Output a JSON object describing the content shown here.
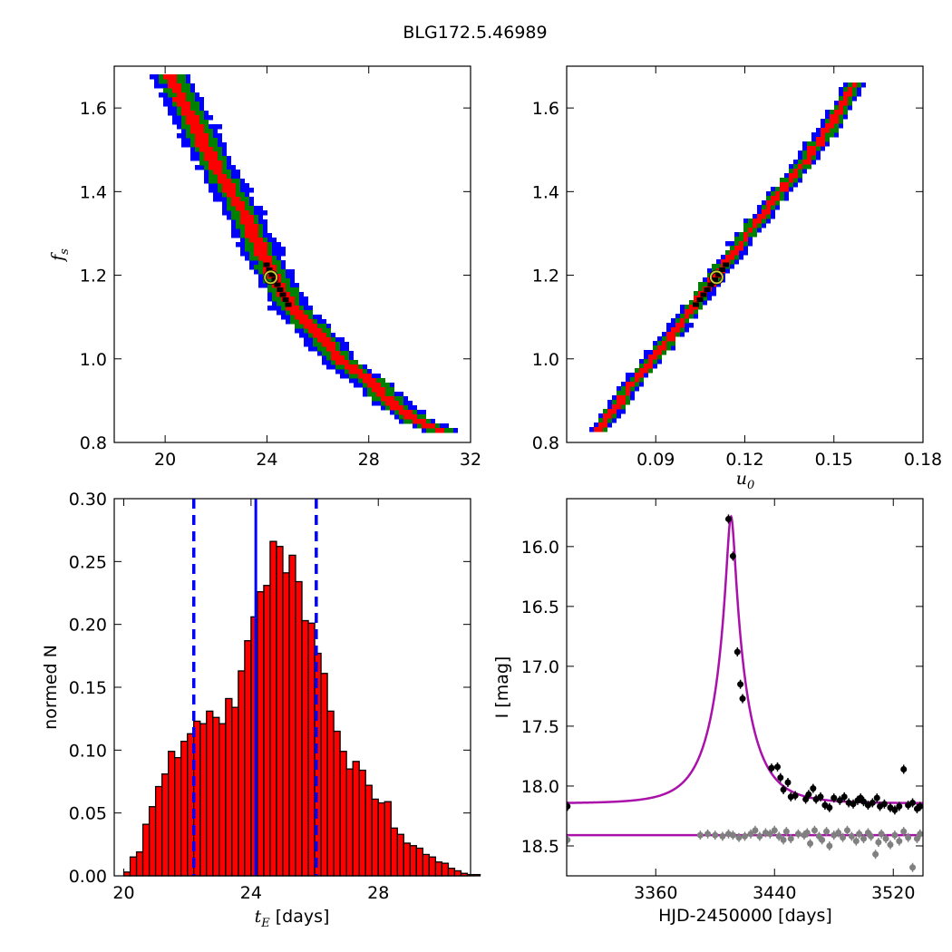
{
  "figure": {
    "title": "BLG172.5.46989"
  },
  "colors": {
    "blue_contour": "#0000ff",
    "green_contour": "#008000",
    "red_contour": "#ff0000",
    "best_marker": "#000000",
    "best_ring": "#c8c832",
    "hist_bar": "#ff0000",
    "hist_edge": "#000000",
    "vline": "#0000ff",
    "model": "#aa10aa",
    "obs_points": "#000000",
    "resid_points": "#808080"
  },
  "chart_data": [
    {
      "id": "tE_vs_fs",
      "type": "heatmap",
      "xlabel": "",
      "ylabel": "f_s",
      "xlim": [
        18,
        32
      ],
      "ylim": [
        0.8,
        1.7
      ],
      "x_ticks": [
        20,
        24,
        28,
        32
      ],
      "y_ticks": [
        0.8,
        1.0,
        1.2,
        1.4,
        1.6
      ],
      "x_tick_labels": [
        "20",
        "24",
        "28",
        "32"
      ],
      "y_tick_labels": [
        "0.8",
        "1.0",
        "1.2",
        "1.4",
        "1.6"
      ],
      "ridge": {
        "x": [
          20.2,
          21.0,
          22.0,
          23.0,
          24.0,
          25.0,
          26.0,
          27.0,
          28.0,
          29.0,
          30.0,
          30.8
        ],
        "y": [
          1.68,
          1.58,
          1.46,
          1.36,
          1.23,
          1.12,
          1.06,
          0.99,
          0.95,
          0.89,
          0.85,
          0.83
        ]
      },
      "confidence_levels": [
        "blue",
        "green",
        "red"
      ],
      "best_fit": {
        "x": 24.15,
        "y": 1.195
      }
    },
    {
      "id": "u0_vs_fs",
      "type": "heatmap",
      "xlabel": "u_0",
      "ylabel": "",
      "xlim": [
        0.06,
        0.18
      ],
      "ylim": [
        0.8,
        1.7
      ],
      "x_ticks": [
        0.09,
        0.12,
        0.15,
        0.18
      ],
      "y_ticks": [
        0.8,
        1.0,
        1.2,
        1.4,
        1.6
      ],
      "x_tick_labels": [
        "0.09",
        "0.12",
        "0.15",
        "0.18"
      ],
      "y_tick_labels": [
        "0.8",
        "1.0",
        "1.2",
        "1.4",
        "1.6"
      ],
      "ridge": {
        "x": [
          0.071,
          0.08,
          0.09,
          0.1,
          0.11,
          0.12,
          0.13,
          0.14,
          0.15,
          0.157
        ],
        "y": [
          0.83,
          0.92,
          1.01,
          1.1,
          1.195,
          1.29,
          1.38,
          1.47,
          1.57,
          1.66
        ]
      },
      "confidence_levels": [
        "blue",
        "green",
        "red"
      ],
      "best_fit": {
        "x": 0.1105,
        "y": 1.195
      }
    },
    {
      "id": "tE_histogram",
      "type": "bar",
      "xlabel": "t_E [days]",
      "ylabel": "normed N",
      "xlim": [
        19.7,
        30.9
      ],
      "ylim": [
        0.0,
        0.3
      ],
      "x_ticks": [
        20,
        24,
        28
      ],
      "y_ticks": [
        0.0,
        0.05,
        0.1,
        0.15,
        0.2,
        0.25,
        0.3
      ],
      "x_tick_labels": [
        "20",
        "24",
        "28"
      ],
      "y_tick_labels": [
        "0.00",
        "0.05",
        "0.10",
        "0.15",
        "0.20",
        "0.25",
        "0.30"
      ],
      "bin_start": 20.0,
      "bin_width": 0.2,
      "values": [
        0.003,
        0.015,
        0.019,
        0.041,
        0.055,
        0.071,
        0.081,
        0.099,
        0.094,
        0.107,
        0.113,
        0.123,
        0.121,
        0.131,
        0.126,
        0.121,
        0.141,
        0.134,
        0.163,
        0.187,
        0.206,
        0.226,
        0.231,
        0.266,
        0.262,
        0.241,
        0.255,
        0.234,
        0.203,
        0.201,
        0.177,
        0.161,
        0.131,
        0.115,
        0.099,
        0.085,
        0.091,
        0.084,
        0.072,
        0.061,
        0.058,
        0.059,
        0.038,
        0.033,
        0.026,
        0.024,
        0.022,
        0.017,
        0.015,
        0.011,
        0.01,
        0.006,
        0.004,
        0.002,
        0.001,
        0.001
      ],
      "vlines": {
        "median": 24.15,
        "lower": 22.2,
        "upper": 26.05
      }
    },
    {
      "id": "light_curve",
      "type": "scatter",
      "xlabel": "HJD-2450000 [days]",
      "ylabel": "I [mag]",
      "xlim": [
        3300,
        3540
      ],
      "ylim": [
        18.75,
        15.6
      ],
      "x_ticks": [
        3360,
        3440,
        3520
      ],
      "y_ticks": [
        16.0,
        16.5,
        17.0,
        17.5,
        18.0,
        18.5
      ],
      "x_tick_labels": [
        "3360",
        "3440",
        "3520"
      ],
      "y_tick_labels": [
        "16.0",
        "16.5",
        "17.0",
        "17.5",
        "18.0",
        "18.5"
      ],
      "model": {
        "t0": 3410.7,
        "u0": 0.1105,
        "tE": 24.15,
        "baseline": 18.145
      },
      "residual_baseline": 18.41,
      "points_primary": [
        [
          3300.5,
          18.17
        ],
        [
          3409.0,
          15.77
        ],
        [
          3412.0,
          16.08
        ],
        [
          3415.0,
          16.88
        ],
        [
          3417.0,
          17.15
        ],
        [
          3418.5,
          17.27
        ],
        [
          3438.0,
          17.85
        ],
        [
          3442.0,
          17.84
        ],
        [
          3444.0,
          17.93
        ],
        [
          3446.0,
          18.03
        ],
        [
          3449.0,
          17.97
        ],
        [
          3451.0,
          18.09
        ],
        [
          3454.0,
          18.08
        ],
        [
          3461.0,
          18.11
        ],
        [
          3463.0,
          18.07
        ],
        [
          3466.0,
          18.02
        ],
        [
          3468.0,
          18.11
        ],
        [
          3471.0,
          18.09
        ],
        [
          3474.0,
          18.16
        ],
        [
          3477.0,
          18.18
        ],
        [
          3480.0,
          18.1
        ],
        [
          3484.0,
          18.12
        ],
        [
          3487.0,
          18.09
        ],
        [
          3490.0,
          18.14
        ],
        [
          3493.0,
          18.15
        ],
        [
          3496.0,
          18.12
        ],
        [
          3498.0,
          18.1
        ],
        [
          3500.0,
          18.13
        ],
        [
          3503.0,
          18.16
        ],
        [
          3506.0,
          18.14
        ],
        [
          3509.0,
          18.1
        ],
        [
          3511.0,
          18.17
        ],
        [
          3514.0,
          18.15
        ],
        [
          3518.0,
          18.18
        ],
        [
          3521.0,
          18.2
        ],
        [
          3524.0,
          18.17
        ],
        [
          3527.0,
          17.86
        ],
        [
          3530.0,
          18.16
        ],
        [
          3533.0,
          18.14
        ],
        [
          3536.0,
          18.19
        ],
        [
          3538.0,
          18.17
        ]
      ],
      "points_residual": [
        [
          3300.5,
          18.45
        ],
        [
          3390.0,
          18.41
        ],
        [
          3395.0,
          18.4
        ],
        [
          3400.0,
          18.41
        ],
        [
          3405.0,
          18.42
        ],
        [
          3409.0,
          18.4
        ],
        [
          3412.0,
          18.41
        ],
        [
          3416.0,
          18.43
        ],
        [
          3420.0,
          18.42
        ],
        [
          3424.0,
          18.4
        ],
        [
          3427.0,
          18.37
        ],
        [
          3430.0,
          18.42
        ],
        [
          3434.0,
          18.39
        ],
        [
          3437.0,
          18.4
        ],
        [
          3440.0,
          18.37
        ],
        [
          3443.0,
          18.42
        ],
        [
          3446.0,
          18.45
        ],
        [
          3448.0,
          18.38
        ],
        [
          3451.0,
          18.44
        ],
        [
          3456.0,
          18.4
        ],
        [
          3460.0,
          18.41
        ],
        [
          3462.0,
          18.39
        ],
        [
          3464.0,
          18.48
        ],
        [
          3467.0,
          18.37
        ],
        [
          3470.0,
          18.42
        ],
        [
          3472.0,
          18.45
        ],
        [
          3475.0,
          18.38
        ],
        [
          3477.0,
          18.5
        ],
        [
          3480.0,
          18.41
        ],
        [
          3483.0,
          18.39
        ],
        [
          3486.0,
          18.43
        ],
        [
          3489.0,
          18.37
        ],
        [
          3492.0,
          18.42
        ],
        [
          3495.0,
          18.46
        ],
        [
          3497.0,
          18.4
        ],
        [
          3500.0,
          18.44
        ],
        [
          3503.0,
          18.39
        ],
        [
          3505.0,
          18.42
        ],
        [
          3508.0,
          18.57
        ],
        [
          3510.0,
          18.47
        ],
        [
          3512.0,
          18.4
        ],
        [
          3515.0,
          18.44
        ],
        [
          3518.0,
          18.49
        ],
        [
          3521.0,
          18.41
        ],
        [
          3524.0,
          18.46
        ],
        [
          3527.0,
          18.38
        ],
        [
          3530.0,
          18.43
        ],
        [
          3533.0,
          18.68
        ],
        [
          3536.0,
          18.44
        ],
        [
          3538.0,
          18.4
        ]
      ]
    }
  ]
}
